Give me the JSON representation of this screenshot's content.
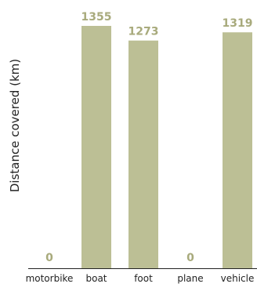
{
  "chart_data": {
    "type": "bar",
    "categories": [
      "motorbike",
      "boat",
      "foot",
      "plane",
      "vehicle"
    ],
    "values": [
      0,
      1355,
      1273,
      0,
      1319
    ],
    "title": "",
    "xlabel": "",
    "ylabel": "Distance covered (km)",
    "ylim": [
      0,
      1355
    ],
    "grid": false,
    "legend": "none",
    "colors": {
      "bar": "#bcbf95",
      "value_label": "#a8aa7c",
      "axis": "#222222",
      "text": "#222222"
    }
  }
}
